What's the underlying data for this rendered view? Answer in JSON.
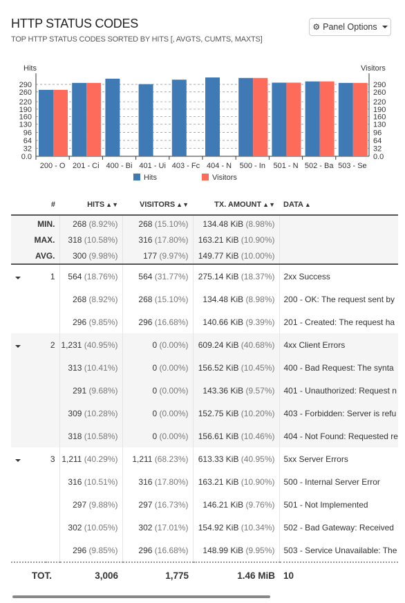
{
  "panel": {
    "title": "HTTP STATUS CODES",
    "subtitle": "TOP HTTP STATUS CODES SORTED BY HITS [, AVGTS, CUMTS, MAXTS]",
    "options_label": "Panel Options"
  },
  "chart_data": {
    "type": "bar",
    "categories": [
      "200 - O",
      "201 - Ci",
      "400 - Bi",
      "401 - Ui",
      "403 - Fc",
      "404 - N",
      "500 - In",
      "501 - N",
      "502 - Ba",
      "503 - Se"
    ],
    "series": [
      {
        "name": "Hits",
        "color": "#3f7ab5",
        "values": [
          268,
          296,
          313,
          291,
          309,
          318,
          316,
          297,
          302,
          296
        ]
      },
      {
        "name": "Visitors",
        "color": "#ff6b5b",
        "values": [
          268,
          296,
          0,
          0,
          0,
          0,
          316,
          297,
          302,
          296
        ]
      }
    ],
    "ylabel_left": "Hits",
    "ylabel_right": "Visitors",
    "yticks": [
      "0.0",
      "32",
      "64",
      "96",
      "130",
      "160",
      "190",
      "220",
      "260",
      "290"
    ],
    "ylim": [
      0,
      318
    ],
    "grid": true,
    "legend": "bottom"
  },
  "table": {
    "headers": {
      "num": "#",
      "hits": "HITS",
      "visitors": "VISITORS",
      "tx": "TX. AMOUNT",
      "data": "DATA"
    },
    "summary": [
      {
        "label": "MIN.",
        "hits": "268",
        "hits_pct": "(8.92%)",
        "visitors": "268",
        "visitors_pct": "(15.10%)",
        "tx": "134.48 KiB",
        "tx_pct": "(8.98%)"
      },
      {
        "label": "MAX.",
        "hits": "318",
        "hits_pct": "(10.58%)",
        "visitors": "316",
        "visitors_pct": "(17.80%)",
        "tx": "163.21 KiB",
        "tx_pct": "(10.90%)"
      },
      {
        "label": "AVG.",
        "hits": "300",
        "hits_pct": "(9.98%)",
        "visitors": "177",
        "visitors_pct": "(9.97%)",
        "tx": "149.77 KiB",
        "tx_pct": "(10.00%)"
      }
    ],
    "groups": [
      {
        "num": "1",
        "hits": "564",
        "hits_pct": "(18.76%)",
        "visitors": "564",
        "visitors_pct": "(31.77%)",
        "tx": "275.14 KiB",
        "tx_pct": "(18.37%)",
        "data": "2xx Success",
        "children": [
          {
            "hits": "268",
            "hits_pct": "(8.92%)",
            "visitors": "268",
            "visitors_pct": "(15.10%)",
            "tx": "134.48 KiB",
            "tx_pct": "(8.98%)",
            "data": "200 - OK: The request sent by"
          },
          {
            "hits": "296",
            "hits_pct": "(9.85%)",
            "visitors": "296",
            "visitors_pct": "(16.68%)",
            "tx": "140.66 KiB",
            "tx_pct": "(9.39%)",
            "data": "201 - Created: The request ha"
          }
        ]
      },
      {
        "num": "2",
        "hits": "1,231",
        "hits_pct": "(40.95%)",
        "visitors": "0",
        "visitors_pct": "(0.00%)",
        "tx": "609.24 KiB",
        "tx_pct": "(40.68%)",
        "data": "4xx Client Errors",
        "children": [
          {
            "hits": "313",
            "hits_pct": "(10.41%)",
            "visitors": "0",
            "visitors_pct": "(0.00%)",
            "tx": "156.52 KiB",
            "tx_pct": "(10.45%)",
            "data": "400 - Bad Request: The synta"
          },
          {
            "hits": "291",
            "hits_pct": "(9.68%)",
            "visitors": "0",
            "visitors_pct": "(0.00%)",
            "tx": "143.36 KiB",
            "tx_pct": "(9.57%)",
            "data": "401 - Unauthorized: Request n"
          },
          {
            "hits": "309",
            "hits_pct": "(10.28%)",
            "visitors": "0",
            "visitors_pct": "(0.00%)",
            "tx": "152.75 KiB",
            "tx_pct": "(10.20%)",
            "data": "403 - Forbidden: Server is refu"
          },
          {
            "hits": "318",
            "hits_pct": "(10.58%)",
            "visitors": "0",
            "visitors_pct": "(0.00%)",
            "tx": "156.61 KiB",
            "tx_pct": "(10.46%)",
            "data": "404 - Not Found: Requested re"
          }
        ]
      },
      {
        "num": "3",
        "hits": "1,211",
        "hits_pct": "(40.29%)",
        "visitors": "1,211",
        "visitors_pct": "(68.23%)",
        "tx": "613.33 KiB",
        "tx_pct": "(40.95%)",
        "data": "5xx Server Errors",
        "children": [
          {
            "hits": "316",
            "hits_pct": "(10.51%)",
            "visitors": "316",
            "visitors_pct": "(17.80%)",
            "tx": "163.21 KiB",
            "tx_pct": "(10.90%)",
            "data": "500 - Internal Server Error"
          },
          {
            "hits": "297",
            "hits_pct": "(9.88%)",
            "visitors": "297",
            "visitors_pct": "(16.73%)",
            "tx": "146.21 KiB",
            "tx_pct": "(9.76%)",
            "data": "501 - Not Implemented"
          },
          {
            "hits": "302",
            "hits_pct": "(10.05%)",
            "visitors": "302",
            "visitors_pct": "(17.01%)",
            "tx": "154.92 KiB",
            "tx_pct": "(10.34%)",
            "data": "502 - Bad Gateway: Received"
          },
          {
            "hits": "296",
            "hits_pct": "(9.85%)",
            "visitors": "296",
            "visitors_pct": "(16.68%)",
            "tx": "148.99 KiB",
            "tx_pct": "(9.95%)",
            "data": "503 - Service Unavailable: The"
          }
        ]
      }
    ],
    "total": {
      "label": "TOT.",
      "hits": "3,006",
      "visitors": "1,775",
      "tx": "1.46 MiB",
      "data": "10"
    }
  }
}
